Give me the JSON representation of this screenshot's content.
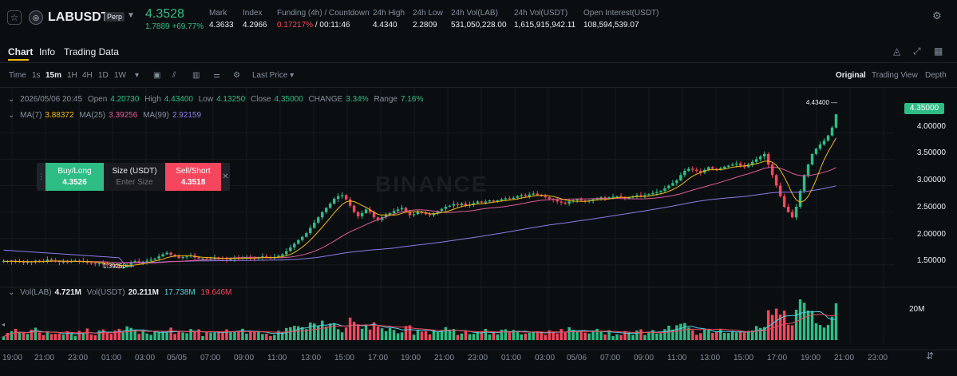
{
  "header": {
    "symbol": "LABUSDT",
    "badge": "Perp",
    "last_price": "4.3528",
    "last_change": "1.7889 +69.77%",
    "stats": [
      {
        "label": "Mark",
        "value": "4.3633"
      },
      {
        "label": "Index",
        "value": "4.2966"
      },
      {
        "label": "Funding (4h) / Countdown",
        "value_red": "0.17217%",
        "value": "/ 00:11:46"
      },
      {
        "label": "24h High",
        "value": "4.4340"
      },
      {
        "label": "24h Low",
        "value": "2.2809"
      },
      {
        "label": "24h Vol(LAB)",
        "value": "531,050,228.00"
      },
      {
        "label": "24h Vol(USDT)",
        "value": "1,615,915,942.11"
      },
      {
        "label": "Open Interest(USDT)",
        "value": "108,594,539.07"
      }
    ],
    "icons": [
      "star-icon",
      "coin-logo-icon",
      "settings-icon"
    ]
  },
  "tabs": [
    "Chart",
    "Info",
    "Trading Data"
  ],
  "toolbar": {
    "intervals": [
      "Time",
      "1s",
      "15m",
      "1H",
      "4H",
      "1D",
      "1W"
    ],
    "active_interval": "15m",
    "price_type": "Last Price",
    "views": [
      "Original",
      "Trading View",
      "Depth"
    ],
    "active_view": "Original"
  },
  "legend": {
    "ohlc": {
      "date": "2026/05/06 20:45",
      "open_label": "Open",
      "open": "4.20730",
      "high_label": "High",
      "high": "4.43400",
      "low_label": "Low",
      "low": "4.13250",
      "close_label": "Close",
      "close": "4.35000",
      "change_label": "CHANGE",
      "change": "3.34%",
      "range_label": "Range",
      "range": "7.16%"
    },
    "ma": {
      "ma7_label": "MA(7)",
      "ma7": "3.88372",
      "ma25_label": "MA(25)",
      "ma25": "3.39256",
      "ma99_label": "MA(99)",
      "ma99": "2.92159"
    },
    "vol": {
      "vol_lab_label": "Vol(LAB)",
      "vol_lab": "4.721M",
      "vol_usdt_label": "Vol(USDT)",
      "vol_usdt": "20.211M",
      "v1": "17.738M",
      "v2": "19.646M"
    }
  },
  "order_widget": {
    "buy_label": "Buy/Long",
    "buy_price": "4.3526",
    "size_label": "Size (USDT)",
    "size_placeholder": "Enter Size",
    "sell_label": "Sell/Short",
    "sell_price": "4.3518"
  },
  "price_axis": [
    "4.00000",
    "3.50000",
    "3.00000",
    "2.50000",
    "2.00000",
    "1.50000"
  ],
  "current_price_tag": "4.35000",
  "high_marker": "4.43400",
  "low_marker": "1.39250",
  "volume_axis": "20M",
  "watermark": "BINANCE",
  "time_axis": [
    "19:00",
    "21:00",
    "23:00",
    "01:00",
    "03:00",
    "05/05",
    "07:00",
    "09:00",
    "11:00",
    "13:00",
    "15:00",
    "17:00",
    "19:00",
    "21:00",
    "23:00",
    "01:00",
    "03:00",
    "05/06",
    "07:00",
    "09:00",
    "11:00",
    "13:00",
    "15:00",
    "17:00",
    "19:00",
    "21:00",
    "23:00"
  ],
  "colors": {
    "up": "#2ebd85",
    "down": "#f6465d",
    "ma7": "#f0b90b",
    "ma25": "#e05a9c",
    "ma99": "#8c7ae6",
    "accent": "#f0b90b"
  },
  "chart_data": {
    "type": "candlestick",
    "interval": "15m",
    "ylim": [
      1.3,
      4.55
    ],
    "close_series": [
      1.57,
      1.56,
      1.58,
      1.55,
      1.57,
      1.54,
      1.56,
      1.55,
      1.58,
      1.57,
      1.56,
      1.6,
      1.58,
      1.57,
      1.55,
      1.56,
      1.55,
      1.57,
      1.58,
      1.56,
      1.57,
      1.54,
      1.53,
      1.52,
      1.53,
      1.51,
      1.5,
      1.49,
      1.47,
      1.45,
      1.46,
      1.5,
      1.55,
      1.57,
      1.54,
      1.56,
      1.58,
      1.6,
      1.62,
      1.66,
      1.7,
      1.73,
      1.69,
      1.66,
      1.63,
      1.65,
      1.66,
      1.68,
      1.64,
      1.62,
      1.62,
      1.61,
      1.62,
      1.64,
      1.63,
      1.62,
      1.6,
      1.61,
      1.63,
      1.62,
      1.64,
      1.65,
      1.63,
      1.62,
      1.64,
      1.66,
      1.64,
      1.63,
      1.65,
      1.67,
      1.7,
      1.76,
      1.83,
      1.9,
      1.97,
      2.03,
      2.1,
      2.2,
      2.3,
      2.4,
      2.5,
      2.58,
      2.66,
      2.75,
      2.8,
      2.82,
      2.74,
      2.62,
      2.5,
      2.42,
      2.48,
      2.55,
      2.5,
      2.4,
      2.35,
      2.4,
      2.45,
      2.48,
      2.52,
      2.55,
      2.58,
      2.5,
      2.44,
      2.46,
      2.5,
      2.48,
      2.46,
      2.44,
      2.48,
      2.52,
      2.56,
      2.6,
      2.62,
      2.65,
      2.63,
      2.66,
      2.62,
      2.64,
      2.67,
      2.7,
      2.68,
      2.7,
      2.72,
      2.7,
      2.72,
      2.74,
      2.76,
      2.75,
      2.77,
      2.8,
      2.82,
      2.8,
      2.83,
      2.85,
      2.82,
      2.8,
      2.78,
      2.75,
      2.73,
      2.7,
      2.68,
      2.66,
      2.7,
      2.72,
      2.74,
      2.72,
      2.7,
      2.72,
      2.74,
      2.76,
      2.78,
      2.76,
      2.78,
      2.79,
      2.8,
      2.78,
      2.76,
      2.78,
      2.8,
      2.82,
      2.8,
      2.82,
      2.84,
      2.86,
      2.88,
      2.9,
      2.95,
      3.0,
      3.05,
      3.1,
      3.2,
      3.28,
      3.32,
      3.3,
      3.28,
      3.25,
      3.3,
      3.35,
      3.32,
      3.3,
      3.33,
      3.36,
      3.38,
      3.4,
      3.42,
      3.38,
      3.35,
      3.4,
      3.45,
      3.5,
      3.55,
      3.6,
      3.4,
      3.2,
      3.0,
      2.8,
      2.6,
      2.5,
      2.4,
      2.6,
      2.9,
      3.2,
      3.4,
      3.6,
      3.7,
      3.78,
      3.85,
      3.95,
      4.1,
      4.35
    ]
  }
}
